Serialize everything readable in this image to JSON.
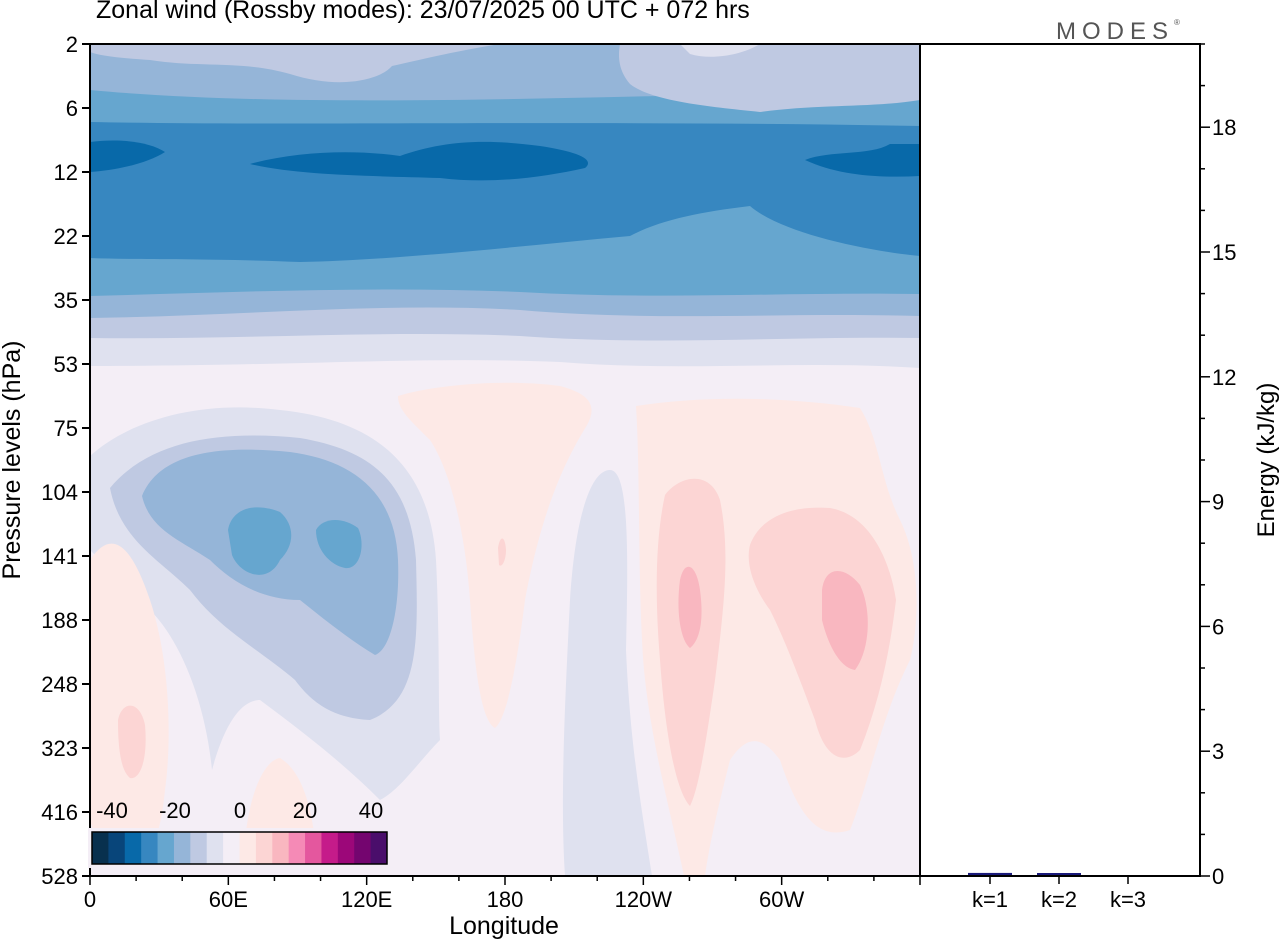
{
  "header": {
    "title": "Zonal wind (Rossby modes):  23/07/2025  00 UTC  + 072 hrs",
    "logo": "MODES"
  },
  "colorbar": {
    "labels": [
      "-40",
      "-20",
      "0",
      "20",
      "40"
    ],
    "colors": [
      "#08304e",
      "#08457a",
      "#0869a9",
      "#3787c0",
      "#66a6cf",
      "#95b5d8",
      "#bfc9e2",
      "#dfe1ef",
      "#f4eef6",
      "#fde9e6",
      "#fcd5d4",
      "#f9b7c0",
      "#f58ab6",
      "#e4579e",
      "#c51b8a",
      "#9c0779",
      "#74056f",
      "#4a0e6b"
    ]
  },
  "chart_data": [
    {
      "type": "heatmap",
      "title": "Zonal wind (Rossby modes):  23/07/2025  00 UTC  + 072 hrs",
      "xlabel": "Longitude",
      "ylabel": "Pressure levels (hPa)",
      "x_ticks": [
        "0",
        "60E",
        "120E",
        "180",
        "120W",
        "60W"
      ],
      "y_ticks": [
        "2",
        "6",
        "12",
        "22",
        "35",
        "53",
        "75",
        "104",
        "141",
        "188",
        "248",
        "323",
        "416",
        "528"
      ],
      "colorbar_range": [
        -45,
        45
      ],
      "colorbar_step": 5,
      "bands": [
        {
          "levels": "2-6 hPa",
          "value": -15
        },
        {
          "levels": "6-12 hPa",
          "value": -25
        },
        {
          "levels": "12-22 hPa",
          "value": -30
        },
        {
          "levels": "22-35 hPa",
          "value": -20
        },
        {
          "levels": "35-53 hPa",
          "value": -10
        },
        {
          "levels": "53-528 hPa",
          "value": 0
        }
      ],
      "features": [
        {
          "region": "60E-120E, 75-248 hPa",
          "value": -20
        },
        {
          "region": "90W, 104-416 hPa",
          "value": 10
        },
        {
          "region": "30W, 141-323 hPa",
          "value": 10
        },
        {
          "region": "120W, 141-528 hPa",
          "value": -5
        }
      ]
    },
    {
      "type": "bar",
      "categories": [
        "k=1",
        "k=2",
        "k=3"
      ],
      "values": [
        0.05,
        0.02,
        0.0
      ],
      "ylabel": "Energy (kJ/kg)",
      "ylim": [
        0,
        20
      ],
      "y_ticks": [
        0,
        3,
        6,
        9,
        12,
        15,
        18
      ]
    }
  ]
}
